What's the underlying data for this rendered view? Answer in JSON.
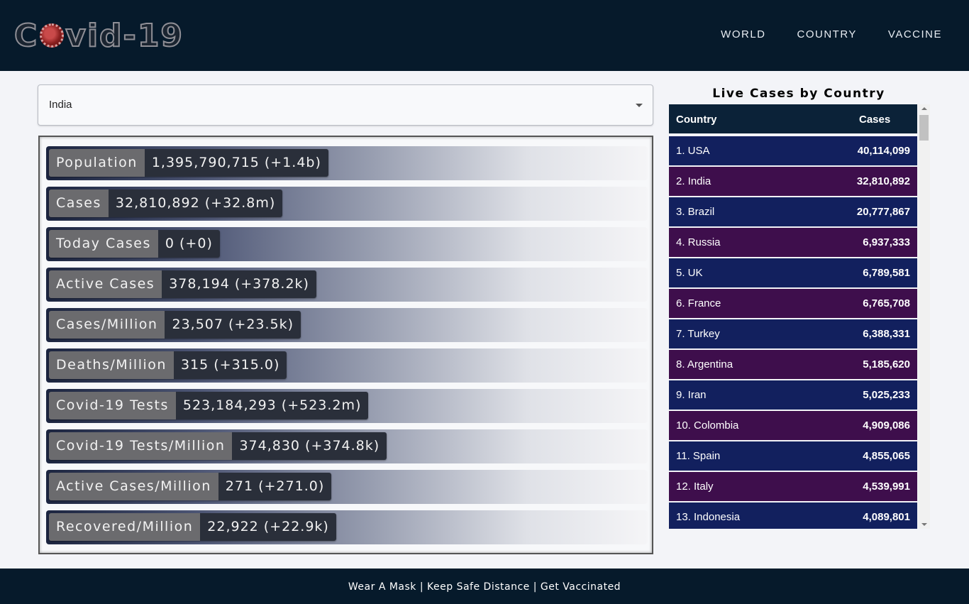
{
  "header": {
    "logo_pre": "C",
    "logo_post": "vid-19",
    "nav": [
      "WORLD",
      "COUNTRY",
      "VACCINE"
    ]
  },
  "selector": {
    "value": "India"
  },
  "stats": [
    {
      "label": "Population",
      "value": "1,395,790,715 (+1.4b)"
    },
    {
      "label": "Cases",
      "value": "32,810,892 (+32.8m)"
    },
    {
      "label": "Today Cases",
      "value": "0 (+0)"
    },
    {
      "label": "Active Cases",
      "value": "378,194 (+378.2k)"
    },
    {
      "label": "Cases/Million",
      "value": "23,507 (+23.5k)"
    },
    {
      "label": "Deaths/Million",
      "value": "315 (+315.0)"
    },
    {
      "label": "Covid-19 Tests",
      "value": "523,184,293 (+523.2m)"
    },
    {
      "label": "Covid-19 Tests/Million",
      "value": "374,830 (+374.8k)"
    },
    {
      "label": "Active Cases/Million",
      "value": "271 (+271.0)"
    },
    {
      "label": "Recovered/Million",
      "value": "22,922 (+22.9k)"
    }
  ],
  "live": {
    "title": "Live Cases by Country",
    "headers": {
      "country": "Country",
      "cases": "Cases"
    },
    "rows": [
      {
        "name": "1. USA",
        "cases": "40,114,099",
        "color": "blue"
      },
      {
        "name": "2. India",
        "cases": "32,810,892",
        "color": "purple"
      },
      {
        "name": "3. Brazil",
        "cases": "20,777,867",
        "color": "blue"
      },
      {
        "name": "4. Russia",
        "cases": "6,937,333",
        "color": "purple"
      },
      {
        "name": "5. UK",
        "cases": "6,789,581",
        "color": "blue"
      },
      {
        "name": "6. France",
        "cases": "6,765,708",
        "color": "purple"
      },
      {
        "name": "7. Turkey",
        "cases": "6,388,331",
        "color": "blue"
      },
      {
        "name": "8. Argentina",
        "cases": "5,185,620",
        "color": "purple"
      },
      {
        "name": "9. Iran",
        "cases": "5,025,233",
        "color": "blue"
      },
      {
        "name": "10. Colombia",
        "cases": "4,909,086",
        "color": "purple"
      },
      {
        "name": "11. Spain",
        "cases": "4,855,065",
        "color": "blue"
      },
      {
        "name": "12. Italy",
        "cases": "4,539,991",
        "color": "purple"
      },
      {
        "name": "13. Indonesia",
        "cases": "4,089,801",
        "color": "blue"
      }
    ]
  },
  "footer": {
    "text": "Wear A Mask | Keep Safe Distance | Get Vaccinated"
  }
}
